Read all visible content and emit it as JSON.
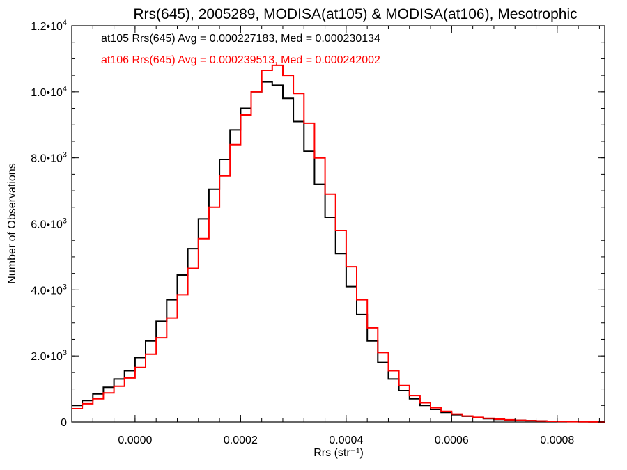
{
  "chart_data": {
    "type": "histogram",
    "title": "Rrs(645), 2005289, MODISA(at105) & MODISA(at106), Mesotrophic",
    "xlabel": "Rrs (str⁻¹)",
    "ylabel": "Number of Observations",
    "xlim": [
      -0.00012,
      0.00089
    ],
    "ylim": [
      0,
      12000
    ],
    "x_ticks": [
      0.0,
      0.0002,
      0.0004,
      0.0006,
      0.0008
    ],
    "x_tick_labels": [
      "0.0000",
      "0.0002",
      "0.0004",
      "0.0006",
      "0.0008"
    ],
    "y_ticks": [
      0,
      2000,
      4000,
      6000,
      8000,
      10000,
      12000
    ],
    "y_tick_labels": [
      {
        "mantissa": "0",
        "exp": ""
      },
      {
        "mantissa": "2.0•10",
        "exp": "3"
      },
      {
        "mantissa": "4.0•10",
        "exp": "3"
      },
      {
        "mantissa": "6.0•10",
        "exp": "3"
      },
      {
        "mantissa": "8.0•10",
        "exp": "3"
      },
      {
        "mantissa": "1.0•10",
        "exp": "4"
      },
      {
        "mantissa": "1.2•10",
        "exp": "4"
      }
    ],
    "grid": false,
    "legend_placement": "top-left",
    "series": [
      {
        "name": "at105 Rrs(645) Avg = 0.000227183, Med = 0.000230134",
        "color": "#000000",
        "x": [
          -0.00012,
          -0.0001,
          -8e-05,
          -6e-05,
          -4e-05,
          -2e-05,
          0.0,
          2e-05,
          4e-05,
          6e-05,
          8e-05,
          0.0001,
          0.00012,
          0.00014,
          0.00016,
          0.00018,
          0.0002,
          0.00022,
          0.00024,
          0.00026,
          0.00028,
          0.0003,
          0.00032,
          0.00034,
          0.00036,
          0.00038,
          0.0004,
          0.00042,
          0.00044,
          0.00046,
          0.00048,
          0.0005,
          0.00052,
          0.00054,
          0.00056,
          0.00058,
          0.0006,
          0.00062,
          0.00064,
          0.00066,
          0.00068,
          0.0007,
          0.00072,
          0.00074,
          0.00076,
          0.00078,
          0.0008,
          0.00082,
          0.00084,
          0.00086,
          0.00088
        ],
        "values": [
          500,
          650,
          850,
          1050,
          1300,
          1550,
          1950,
          2450,
          3050,
          3700,
          4450,
          5250,
          6150,
          7050,
          7950,
          8850,
          9500,
          10000,
          10300,
          10200,
          9800,
          9100,
          8200,
          7200,
          6200,
          5100,
          4100,
          3250,
          2450,
          1800,
          1300,
          950,
          700,
          500,
          380,
          290,
          220,
          170,
          130,
          100,
          80,
          60,
          50,
          40,
          30,
          20,
          15,
          10,
          8,
          5,
          0
        ]
      },
      {
        "name": "at106 Rrs(645) Avg = 0.000239513, Med = 0.000242002",
        "color": "#ff0000",
        "x": [
          -0.00012,
          -0.0001,
          -8e-05,
          -6e-05,
          -4e-05,
          -2e-05,
          0.0,
          2e-05,
          4e-05,
          6e-05,
          8e-05,
          0.0001,
          0.00012,
          0.00014,
          0.00016,
          0.00018,
          0.0002,
          0.00022,
          0.00024,
          0.00026,
          0.00028,
          0.0003,
          0.00032,
          0.00034,
          0.00036,
          0.00038,
          0.0004,
          0.00042,
          0.00044,
          0.00046,
          0.00048,
          0.0005,
          0.00052,
          0.00054,
          0.00056,
          0.00058,
          0.0006,
          0.00062,
          0.00064,
          0.00066,
          0.00068,
          0.0007,
          0.00072,
          0.00074,
          0.00076,
          0.00078,
          0.0008,
          0.00082,
          0.00084,
          0.00086,
          0.00088
        ],
        "values": [
          400,
          550,
          700,
          880,
          1080,
          1330,
          1650,
          2050,
          2550,
          3150,
          3850,
          4650,
          5550,
          6500,
          7450,
          8400,
          9300,
          10000,
          10650,
          10800,
          10500,
          9950,
          9050,
          8000,
          6900,
          5800,
          4700,
          3700,
          2850,
          2100,
          1550,
          1100,
          800,
          580,
          430,
          320,
          240,
          180,
          140,
          110,
          85,
          65,
          50,
          40,
          30,
          22,
          15,
          10,
          8,
          5,
          0
        ]
      }
    ]
  }
}
